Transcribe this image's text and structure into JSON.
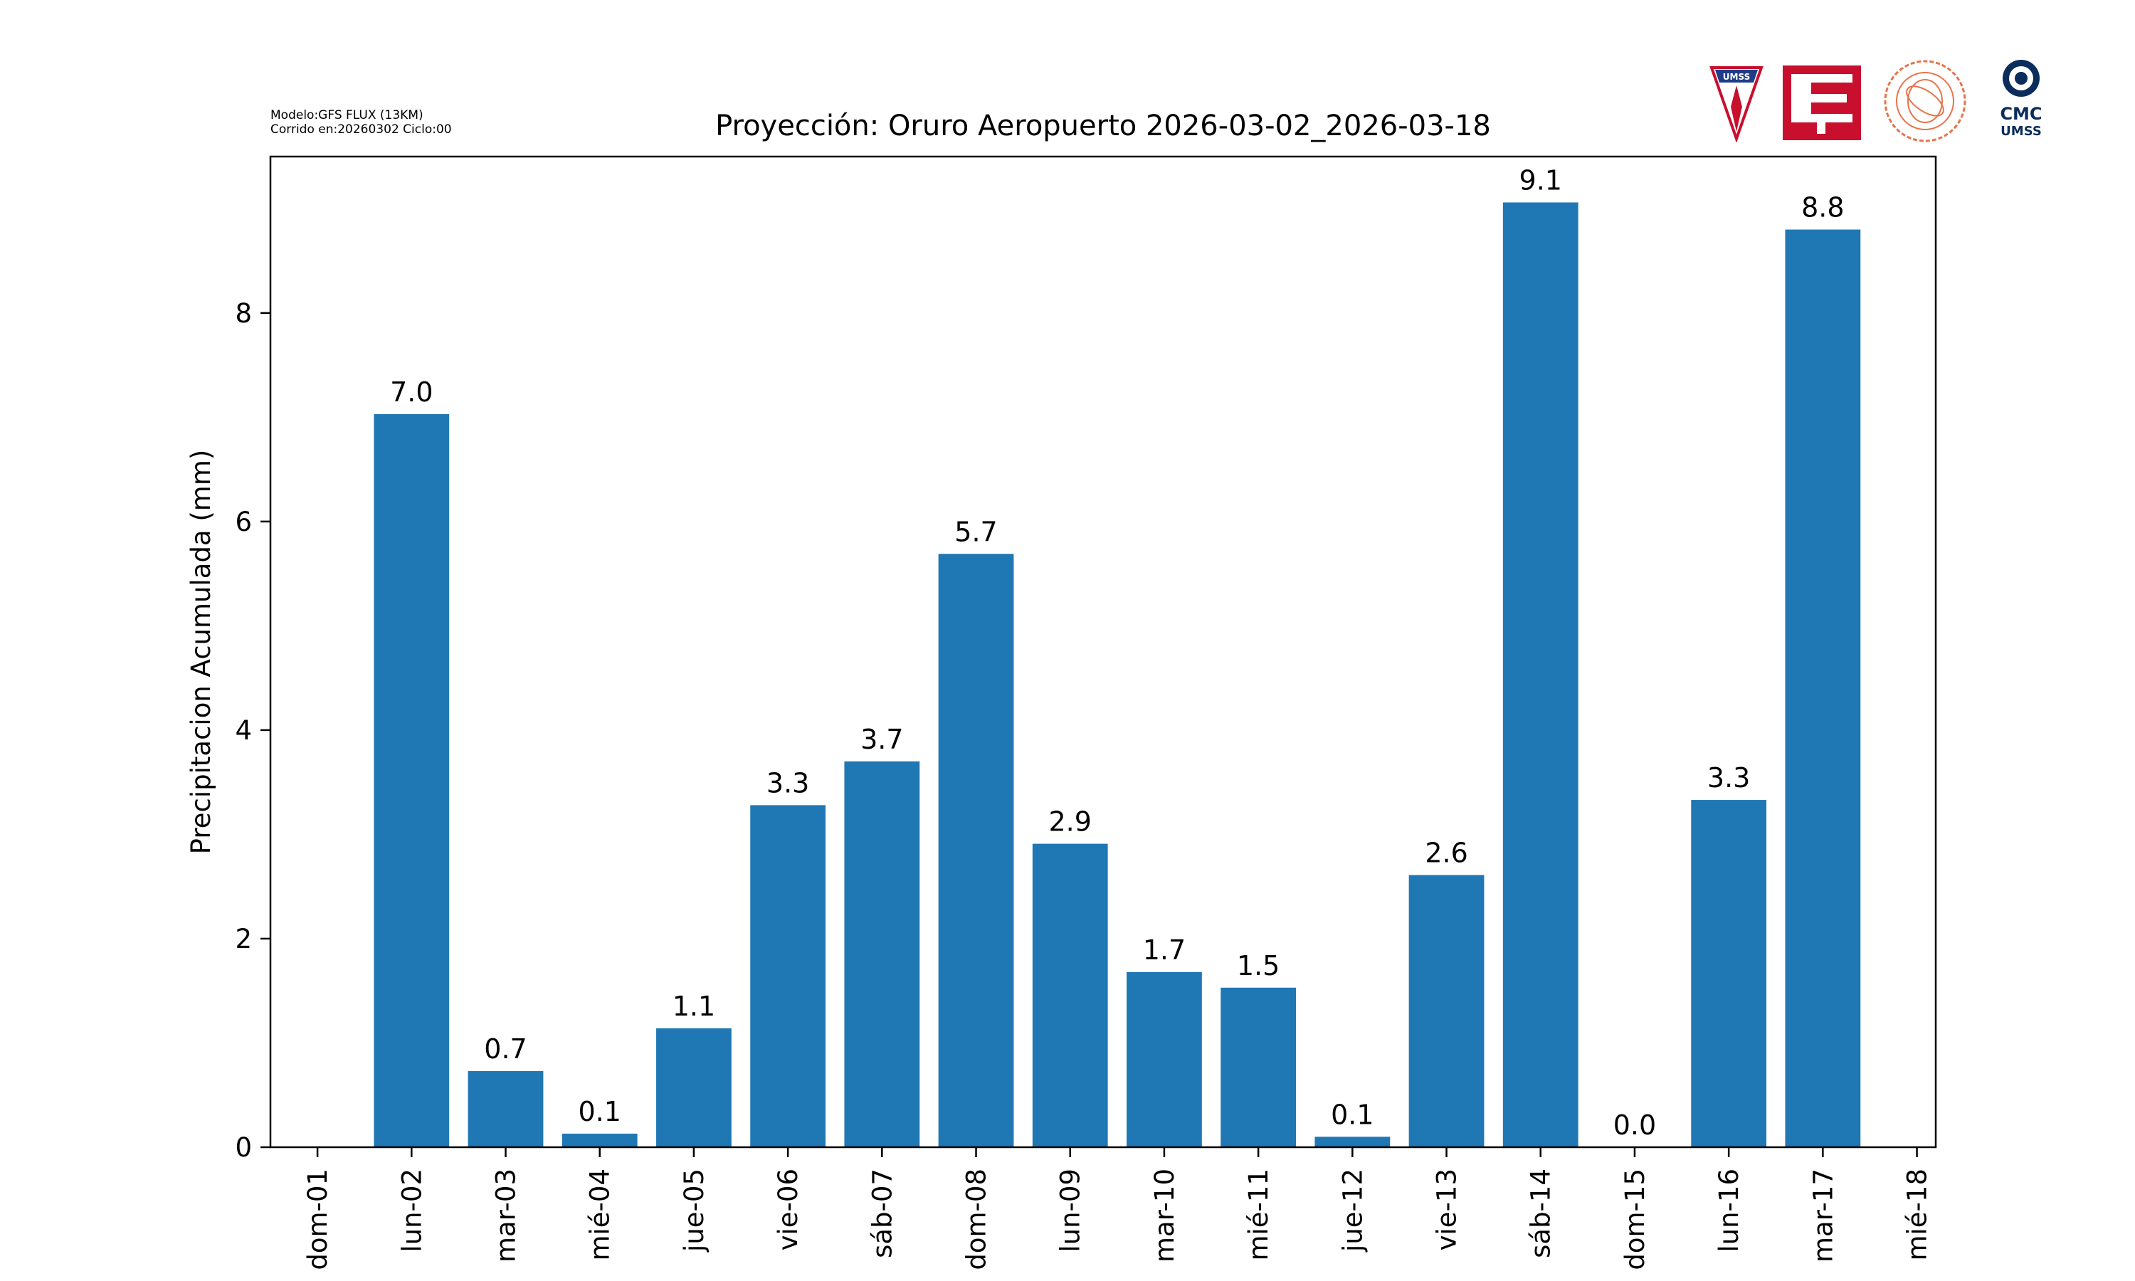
{
  "header": {
    "model_line": "Modelo:GFS FLUX (13KM)",
    "run_line": "Corrido en:20260302 Ciclo:00"
  },
  "logos": {
    "umss_text": "UMSS",
    "cmc_text": "CMC",
    "cmc_sub_text": "UMSS"
  },
  "chart_data": {
    "type": "bar",
    "title": "Proyección: Oruro Aeropuerto  2026-03-02_2026-03-18",
    "xlabel": "",
    "ylabel": "Precipitacion Acumulada (mm)",
    "x_ticks": [
      "dom-01",
      "lun-02",
      "mar-03",
      "mié-04",
      "jue-05",
      "vie-06",
      "sáb-07",
      "dom-08",
      "lun-09",
      "mar-10",
      "mié-11",
      "jue-12",
      "vie-13",
      "sáb-14",
      "dom-15",
      "lun-16",
      "mar-17",
      "mié-18"
    ],
    "x_range": [
      -0.5,
      17.2
    ],
    "ylim": [
      0,
      9.5
    ],
    "y_ticks": [
      0,
      2,
      4,
      6,
      8
    ],
    "bars": [
      {
        "x": 1,
        "value": 7.03,
        "label": "7.0"
      },
      {
        "x": 2,
        "value": 0.73,
        "label": "0.7"
      },
      {
        "x": 3,
        "value": 0.13,
        "label": "0.1"
      },
      {
        "x": 4,
        "value": 1.14,
        "label": "1.1"
      },
      {
        "x": 5,
        "value": 3.28,
        "label": "3.3"
      },
      {
        "x": 6,
        "value": 3.7,
        "label": "3.7"
      },
      {
        "x": 7,
        "value": 5.69,
        "label": "5.7"
      },
      {
        "x": 8,
        "value": 2.91,
        "label": "2.9"
      },
      {
        "x": 9,
        "value": 1.68,
        "label": "1.7"
      },
      {
        "x": 10,
        "value": 1.53,
        "label": "1.5"
      },
      {
        "x": 11,
        "value": 0.1,
        "label": "0.1"
      },
      {
        "x": 12,
        "value": 2.61,
        "label": "2.6"
      },
      {
        "x": 13,
        "value": 9.06,
        "label": "9.1"
      },
      {
        "x": 14,
        "value": 0.0,
        "label": "0.0"
      },
      {
        "x": 15,
        "value": 3.33,
        "label": "3.3"
      },
      {
        "x": 16,
        "value": 8.8,
        "label": "8.8"
      }
    ],
    "bar_color": "#1f77b4",
    "grid": false
  }
}
